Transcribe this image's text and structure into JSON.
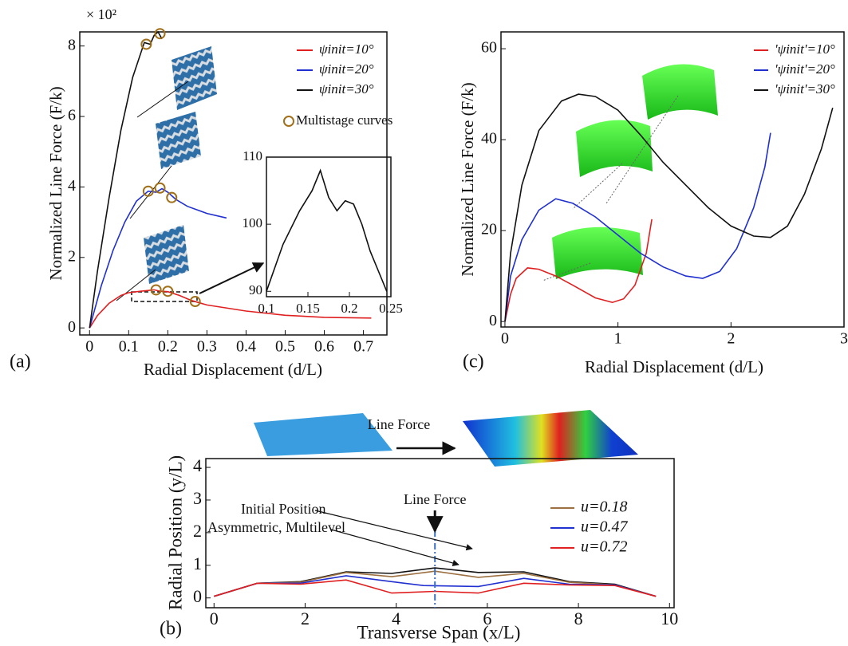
{
  "chart_data": [
    {
      "type": "line",
      "panel_label": "(a)",
      "y_multiplier": "× 10²",
      "xlabel": "Radial Displacement (d/L)",
      "ylabel": "Normalized Line Force (F/k)",
      "xlim": [
        -0.025,
        0.76
      ],
      "ylim": [
        -0.2,
        8.4
      ],
      "xticks": [
        0,
        0.1,
        0.2,
        0.3,
        0.4,
        0.5,
        0.6,
        0.7
      ],
      "yticks": [
        0,
        2,
        4,
        6,
        8
      ],
      "series": [
        {
          "name": "ψinit=10°",
          "color": "#e02020",
          "x": [
            0,
            0.02,
            0.05,
            0.08,
            0.1,
            0.13,
            0.165,
            0.18,
            0.2,
            0.23,
            0.26,
            0.3,
            0.4,
            0.5,
            0.6,
            0.72
          ],
          "values": [
            0,
            0.35,
            0.7,
            0.92,
            1.0,
            1.04,
            1.08,
            1.04,
            1.03,
            0.92,
            0.78,
            0.65,
            0.48,
            0.36,
            0.3,
            0.28
          ]
        },
        {
          "name": "ψinit=20°",
          "color": "#2030d0",
          "x": [
            0,
            0.03,
            0.06,
            0.09,
            0.12,
            0.15,
            0.17,
            0.185,
            0.2,
            0.22,
            0.25,
            0.3,
            0.35
          ],
          "values": [
            0,
            1.2,
            2.2,
            3.0,
            3.6,
            3.88,
            3.85,
            3.95,
            3.85,
            3.65,
            3.45,
            3.25,
            3.12
          ]
        },
        {
          "name": "ψinit=30°",
          "color": "#111111",
          "x": [
            0,
            0.02,
            0.05,
            0.08,
            0.11,
            0.14,
            0.155,
            0.165,
            0.175,
            0.185
          ],
          "values": [
            0,
            1.6,
            3.7,
            5.6,
            7.1,
            8.1,
            8.05,
            8.3,
            8.4,
            8.2
          ]
        },
        {
          "name": "Multistage curves",
          "color": "#a0701a",
          "marker": "circle",
          "x": [
            0.17,
            0.2,
            0.27,
            0.15,
            0.18,
            0.21,
            0.145,
            0.18
          ],
          "values": [
            1.08,
            1.04,
            0.75,
            3.88,
            3.97,
            3.7,
            8.05,
            8.35
          ]
        }
      ]
    },
    {
      "type": "line",
      "xlim": [
        0.1,
        0.25
      ],
      "ylim": [
        89.2,
        110
      ],
      "xticks": [
        0.1,
        0.15,
        0.2,
        0.25
      ],
      "yticks": [
        90,
        100,
        110
      ],
      "series": [
        {
          "color": "#111111",
          "x": [
            0.1,
            0.12,
            0.14,
            0.155,
            0.165,
            0.175,
            0.185,
            0.195,
            0.205,
            0.215,
            0.225,
            0.235,
            0.245
          ],
          "values": [
            90,
            97,
            102,
            105,
            108,
            104,
            102,
            103.5,
            103,
            100,
            96,
            93,
            90
          ]
        }
      ]
    },
    {
      "type": "line",
      "panel_label": "(c)",
      "xlabel": "Radial Displacement (d/L)",
      "ylabel": "Normalized Line Force (F/k)",
      "xlim": [
        -0.035,
        3.0
      ],
      "ylim": [
        -1.2,
        63.7
      ],
      "xticks": [
        0,
        1,
        2,
        3
      ],
      "yticks": [
        0,
        20,
        40,
        60
      ],
      "series": [
        {
          "name": "'ψinit'=10°",
          "color": "#e02020",
          "x": [
            0,
            0.05,
            0.1,
            0.2,
            0.3,
            0.45,
            0.6,
            0.8,
            0.95,
            1.05,
            1.15,
            1.25,
            1.3
          ],
          "values": [
            0,
            6,
            9.5,
            11.8,
            11.5,
            10,
            8,
            5.2,
            4.2,
            5,
            8,
            15,
            22.5
          ]
        },
        {
          "name": "'ψinit'=20°",
          "color": "#2030d0",
          "x": [
            0,
            0.05,
            0.15,
            0.3,
            0.45,
            0.6,
            0.8,
            1.0,
            1.2,
            1.4,
            1.6,
            1.75,
            1.9,
            2.05,
            2.2,
            2.3,
            2.35
          ],
          "values": [
            0,
            10,
            18,
            24.5,
            27,
            26,
            23,
            19,
            15,
            12,
            10,
            9.5,
            11,
            16,
            25,
            34,
            41.5
          ]
        },
        {
          "name": "'ψinit'=30°",
          "color": "#111111",
          "x": [
            0,
            0.05,
            0.15,
            0.3,
            0.5,
            0.65,
            0.8,
            1.0,
            1.2,
            1.4,
            1.6,
            1.8,
            2.0,
            2.2,
            2.35,
            2.5,
            2.65,
            2.8,
            2.9
          ],
          "values": [
            0,
            15,
            30,
            42,
            48.5,
            50,
            49.5,
            46.5,
            41,
            35,
            30,
            25,
            21,
            18.8,
            18.5,
            21,
            28,
            38,
            47
          ]
        }
      ]
    },
    {
      "type": "line",
      "panel_label": "(b)",
      "xlabel": "Transverse Span (x/L)",
      "ylabel": "Radial Position (y/L)",
      "xlim": [
        -0.18,
        10.1
      ],
      "ylim": [
        -0.3,
        4.27
      ],
      "xticks": [
        0,
        2,
        4,
        6,
        8,
        10
      ],
      "yticks": [
        0,
        1,
        2,
        3,
        4
      ],
      "annotations": [
        "Line Force",
        "Line Force",
        "Initial Position",
        "Asymmetric, Multilevel"
      ],
      "series": [
        {
          "color": "#111111",
          "x": [
            0,
            0.95,
            1.9,
            2.9,
            3.9,
            4.85,
            5.8,
            6.8,
            7.8,
            8.8,
            9.7
          ],
          "values": [
            0.05,
            0.45,
            0.5,
            0.8,
            0.75,
            0.92,
            0.78,
            0.8,
            0.5,
            0.42,
            0.05
          ]
        },
        {
          "name": "u=0.18",
          "color": "#9c7040",
          "x": [
            0,
            0.95,
            1.9,
            2.9,
            3.9,
            4.85,
            5.8,
            6.8,
            7.8,
            8.8,
            9.7
          ],
          "values": [
            0.05,
            0.45,
            0.48,
            0.78,
            0.65,
            0.82,
            0.63,
            0.75,
            0.48,
            0.4,
            0.05
          ]
        },
        {
          "name": "u=0.47",
          "color": "#2030d0",
          "x": [
            0,
            0.95,
            1.9,
            2.9,
            3.9,
            4.6,
            5.8,
            6.8,
            7.8,
            8.8,
            9.7
          ],
          "values": [
            0.05,
            0.45,
            0.45,
            0.68,
            0.5,
            0.38,
            0.35,
            0.6,
            0.42,
            0.4,
            0.05
          ]
        },
        {
          "name": "u=0.72",
          "color": "#e02020",
          "x": [
            0,
            0.95,
            1.9,
            2.9,
            3.9,
            4.85,
            5.8,
            6.8,
            7.8,
            8.8,
            9.7
          ],
          "values": [
            0.05,
            0.45,
            0.42,
            0.55,
            0.15,
            0.2,
            0.15,
            0.45,
            0.4,
            0.38,
            0.05
          ]
        }
      ]
    }
  ]
}
